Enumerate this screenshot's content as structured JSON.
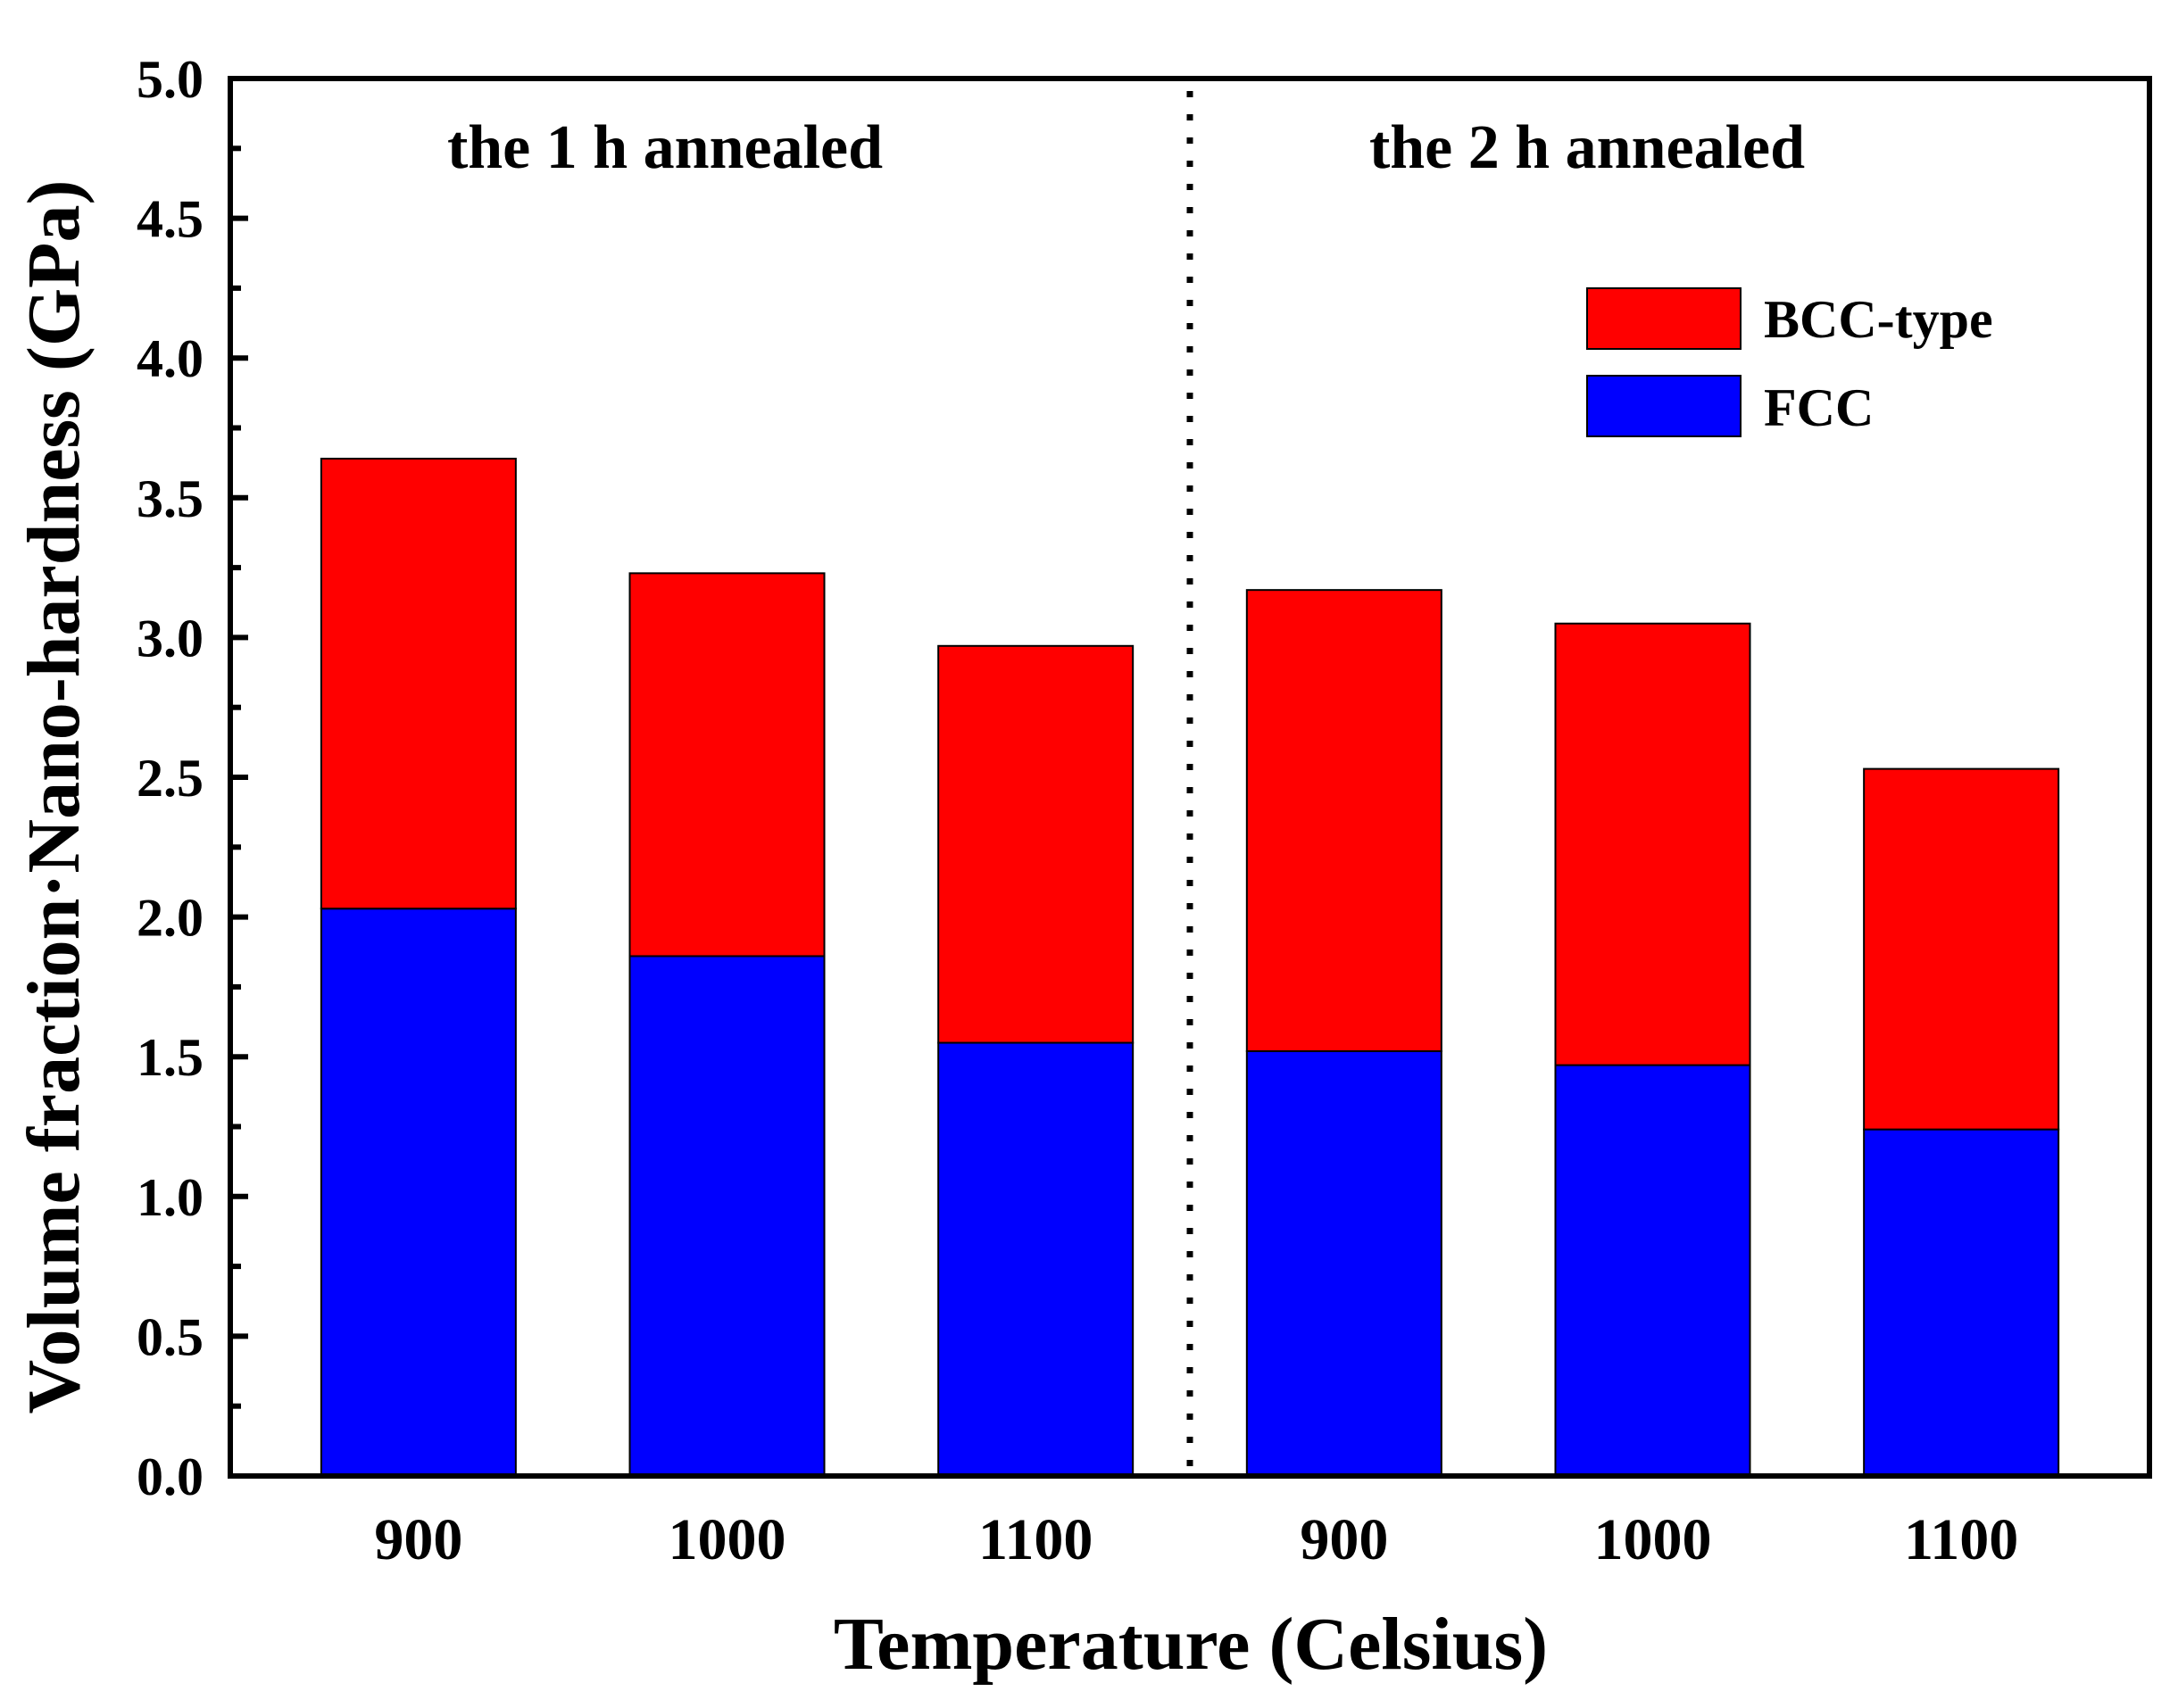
{
  "chart_data": {
    "type": "bar",
    "stacked": true,
    "title": "",
    "xlabel": "Temperature (Celsius)",
    "ylabel": "Volume fraction·Nano-hardness (GPa)",
    "ylim": [
      0,
      5.0
    ],
    "yticks": [
      "0.0",
      "0.5",
      "1.0",
      "1.5",
      "2.0",
      "2.5",
      "3.0",
      "3.5",
      "4.0",
      "4.5",
      "5.0"
    ],
    "categories": [
      "900",
      "1000",
      "1100",
      "900",
      "1000",
      "1100"
    ],
    "series": [
      {
        "name": "FCC",
        "color": "#0000ff",
        "values": [
          2.03,
          1.86,
          1.55,
          1.52,
          1.47,
          1.24
        ]
      },
      {
        "name": "BCC-type",
        "color": "#ff0000",
        "values": [
          1.61,
          1.37,
          1.42,
          1.65,
          1.58,
          1.29
        ]
      }
    ],
    "annotations": [
      "the 1 h annealed",
      "the 2 h annealed"
    ],
    "legend": {
      "position": "top-right",
      "order": [
        "BCC-type",
        "FCC"
      ]
    }
  }
}
